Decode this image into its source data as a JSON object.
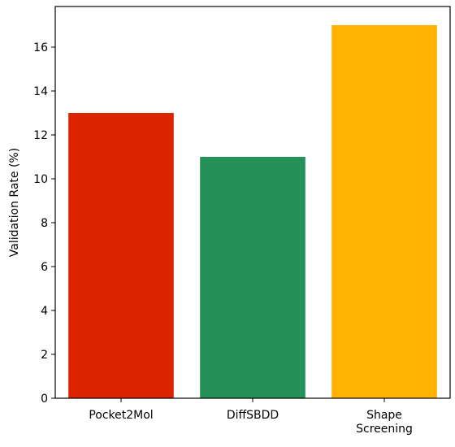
{
  "chart_data": {
    "type": "bar",
    "title": "",
    "xlabel": "",
    "ylabel": "Validation Rate (%)",
    "categories": [
      [
        "Pocket2Mol"
      ],
      [
        "DiffSBDD"
      ],
      [
        "Shape",
        "Screening"
      ]
    ],
    "values": [
      13,
      11,
      17
    ],
    "colors": [
      "#dc2300",
      "#259057",
      "#ffb300"
    ],
    "ylim": [
      0,
      17.85
    ],
    "yticks": [
      0,
      2,
      4,
      6,
      8,
      10,
      12,
      14,
      16
    ],
    "grid": false,
    "legend": "none"
  }
}
